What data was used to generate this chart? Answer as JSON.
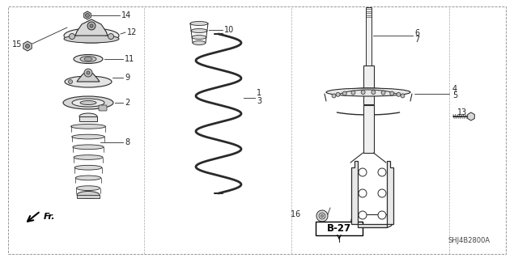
{
  "bg_color": "#ffffff",
  "line_color": "#2a2a2a",
  "diagram_id": "SHJ4B2800A",
  "page_ref": "B-27",
  "border": [
    10,
    5,
    625,
    310
  ],
  "inner_border": [
    175,
    5,
    570,
    310
  ],
  "inner_border2": [
    430,
    5,
    570,
    310
  ],
  "font_size": 7,
  "label_color": "#222222"
}
